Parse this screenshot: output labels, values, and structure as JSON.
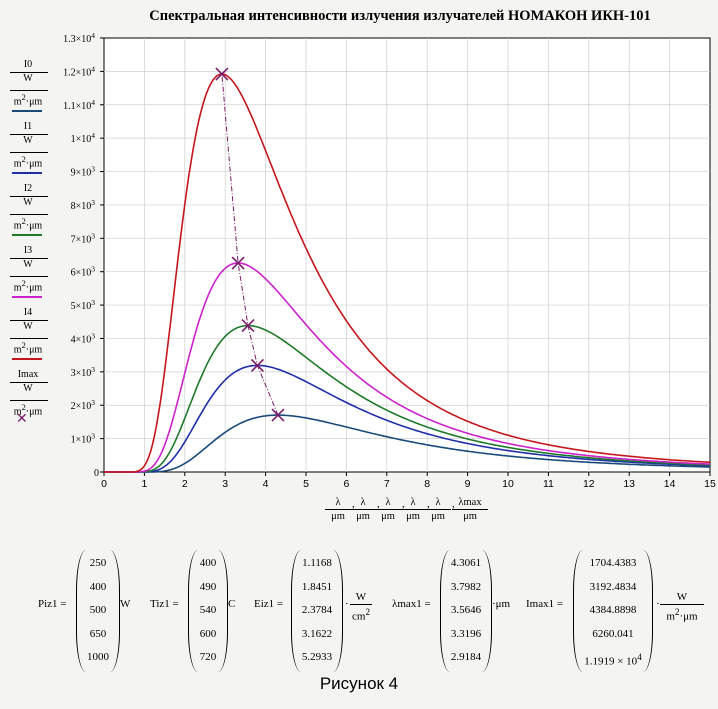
{
  "chart_data": {
    "type": "line",
    "title": "Спектральная интенсивности излучения излучателей НОМАКОН ИКН-101",
    "xlim": [
      0,
      15
    ],
    "ylim": [
      0,
      13000
    ],
    "x_ticks": [
      "0",
      "1",
      "2",
      "3",
      "4",
      "5",
      "6",
      "7",
      "8",
      "9",
      "10",
      "11",
      "12",
      "13",
      "14",
      "15"
    ],
    "y_ticks": [
      {
        "base": "0",
        "exp": ""
      },
      {
        "base": "1×10",
        "exp": "3"
      },
      {
        "base": "2×10",
        "exp": "3"
      },
      {
        "base": "3×10",
        "exp": "3"
      },
      {
        "base": "4×10",
        "exp": "3"
      },
      {
        "base": "5×10",
        "exp": "3"
      },
      {
        "base": "6×10",
        "exp": "3"
      },
      {
        "base": "7×10",
        "exp": "3"
      },
      {
        "base": "8×10",
        "exp": "3"
      },
      {
        "base": "9×10",
        "exp": "3"
      },
      {
        "base": "1×10",
        "exp": "4"
      },
      {
        "base": "1.1×10",
        "exp": "4"
      },
      {
        "base": "1.2×10",
        "exp": "4"
      },
      {
        "base": "1.3×10",
        "exp": "4"
      }
    ],
    "grid": true,
    "series": [
      {
        "name": "I0",
        "color": "#1a4a7a",
        "peak_x": 4.3061,
        "peak_y": 1704.4383,
        "T": 400
      },
      {
        "name": "I1",
        "color": "#1f2fa8",
        "peak_x": 3.7982,
        "peak_y": 3192.4834,
        "T": 490
      },
      {
        "name": "I2",
        "color": "#1e7a2a",
        "peak_x": 3.5646,
        "peak_y": 4384.8898,
        "T": 540
      },
      {
        "name": "I3",
        "color": "#cc22cc",
        "peak_x": 3.3196,
        "peak_y": 6260.041,
        "T": 600
      },
      {
        "name": "I4",
        "color": "#c4161c",
        "peak_x": 2.9184,
        "peak_y": 11919,
        "T": 720
      }
    ],
    "max_series": {
      "name": "Imax",
      "color": "#7a1a6a"
    },
    "cutoff_x": 0.8
  },
  "legend": {
    "unit_num": "W",
    "unit_den_a": "m",
    "unit_den_exp": "2",
    "unit_den_b": "·μm"
  },
  "x_axis_labels": [
    {
      "num": "λ",
      "den": "μm"
    },
    {
      "num": "λ",
      "den": "μm"
    },
    {
      "num": "λ",
      "den": "μm"
    },
    {
      "num": "λ",
      "den": "μm"
    },
    {
      "num": "λ",
      "den": "μm"
    },
    {
      "num": "λmax",
      "den": "μm"
    }
  ],
  "matrices": {
    "piz": {
      "label": "Piz1 =",
      "values": [
        "250",
        "400",
        "500",
        "650",
        "1000"
      ],
      "unit": "W"
    },
    "tiz": {
      "label": "Tiz1 =",
      "values": [
        "400",
        "490",
        "540",
        "600",
        "720"
      ],
      "unit": "C"
    },
    "eiz": {
      "label": "Eiz1 =",
      "values": [
        "1.1168",
        "1.8451",
        "2.3784",
        "3.1622",
        "5.2933"
      ],
      "unit_num": "W",
      "unit_den": "cm",
      "unit_exp": "2"
    },
    "lmax": {
      "label": "λmax1 =",
      "values": [
        "4.3061",
        "3.7982",
        "3.5646",
        "3.3196",
        "2.9184"
      ],
      "unit": "·μm"
    },
    "imax": {
      "label": "Imax1 =",
      "values": [
        "1704.4383",
        "3192.4834",
        "4384.8898",
        "6260.041",
        "1.1919 × 10"
      ],
      "last_exp": "4",
      "unit_num": "W",
      "unit_den": "m",
      "unit_exp": "2",
      "unit_den_b": "·μm"
    }
  },
  "caption": "Рисунок 4"
}
